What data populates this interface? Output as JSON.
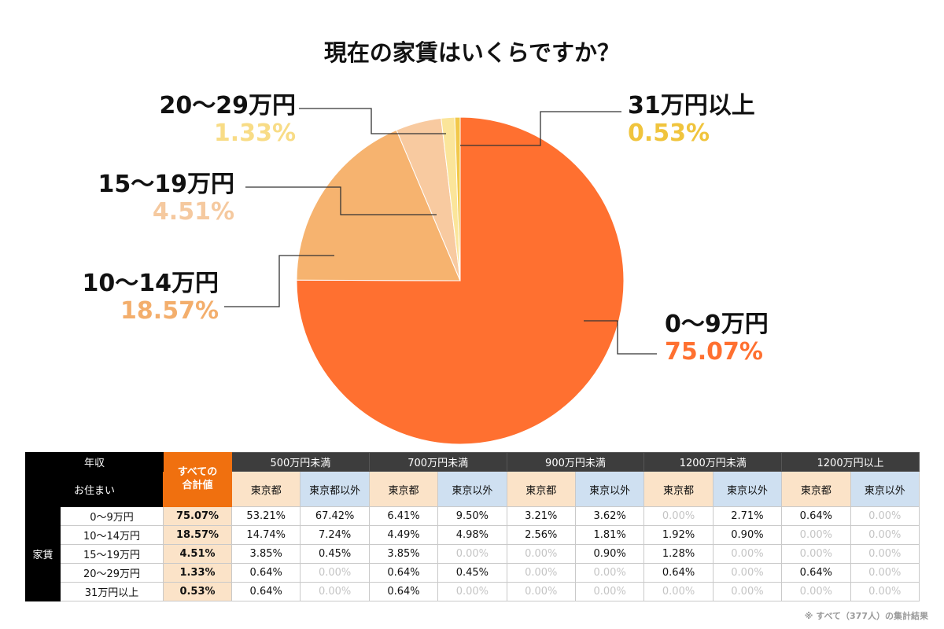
{
  "chart_data": {
    "type": "pie",
    "title": "現在の家賃はいくらですか？",
    "start": "top, clockwise",
    "slices": [
      {
        "label": "0〜9万円",
        "percent_text": "75.07%",
        "value": 75.07,
        "color": "#ff7030",
        "label_color": "#ff7030"
      },
      {
        "label": "10〜14万円",
        "percent_text": "18.57%",
        "value": 18.57,
        "color": "#f6b36f",
        "label_color": "#f3ae6c"
      },
      {
        "label": "15〜19万円",
        "percent_text": "4.51%",
        "value": 4.51,
        "color": "#f8caa0",
        "label_color": "#f5c99f"
      },
      {
        "label": "20〜29万円",
        "percent_text": "1.33%",
        "value": 1.33,
        "color": "#fbe59a",
        "label_color": "#f8dc86"
      },
      {
        "label": "31万円以上",
        "percent_text": "0.53%",
        "value": 0.53,
        "color": "#f2c84a",
        "label_color": "#f0c43d"
      }
    ]
  },
  "table": {
    "header_income": "年収",
    "header_residence": "お住まい",
    "header_total": "すべての\n合計値",
    "row_group": "家賃",
    "groups": [
      "500万円未満",
      "700万円未満",
      "900万円未満",
      "1200万円未満",
      "1200万円以上"
    ],
    "subheaders": [
      [
        "東京都",
        "東京都以外"
      ],
      [
        "東京都",
        "東京以外"
      ],
      [
        "東京都",
        "東京以外"
      ],
      [
        "東京都",
        "東京以外"
      ],
      [
        "東京都",
        "東京以外"
      ]
    ],
    "rows": [
      {
        "label": "0〜9万円",
        "total": "75.07%",
        "cells": [
          "53.21%",
          "67.42%",
          "6.41%",
          "9.50%",
          "3.21%",
          "3.62%",
          "0.00%",
          "2.71%",
          "0.64%",
          "0.00%"
        ]
      },
      {
        "label": "10〜14万円",
        "total": "18.57%",
        "cells": [
          "14.74%",
          "7.24%",
          "4.49%",
          "4.98%",
          "2.56%",
          "1.81%",
          "1.92%",
          "0.90%",
          "0.00%",
          "0.00%"
        ]
      },
      {
        "label": "15〜19万円",
        "total": "4.51%",
        "cells": [
          "3.85%",
          "0.45%",
          "3.85%",
          "0.00%",
          "0.00%",
          "0.90%",
          "1.28%",
          "0.00%",
          "0.00%",
          "0.00%"
        ]
      },
      {
        "label": "20〜29万円",
        "total": "1.33%",
        "cells": [
          "0.64%",
          "0.00%",
          "0.64%",
          "0.45%",
          "0.00%",
          "0.00%",
          "0.64%",
          "0.00%",
          "0.64%",
          "0.00%"
        ]
      },
      {
        "label": "31万円以上",
        "total": "0.53%",
        "cells": [
          "0.64%",
          "0.00%",
          "0.64%",
          "0.00%",
          "0.00%",
          "0.00%",
          "0.00%",
          "0.00%",
          "0.00%",
          "0.00%"
        ]
      }
    ]
  },
  "note": "※ すべて（377人）の集計結果"
}
